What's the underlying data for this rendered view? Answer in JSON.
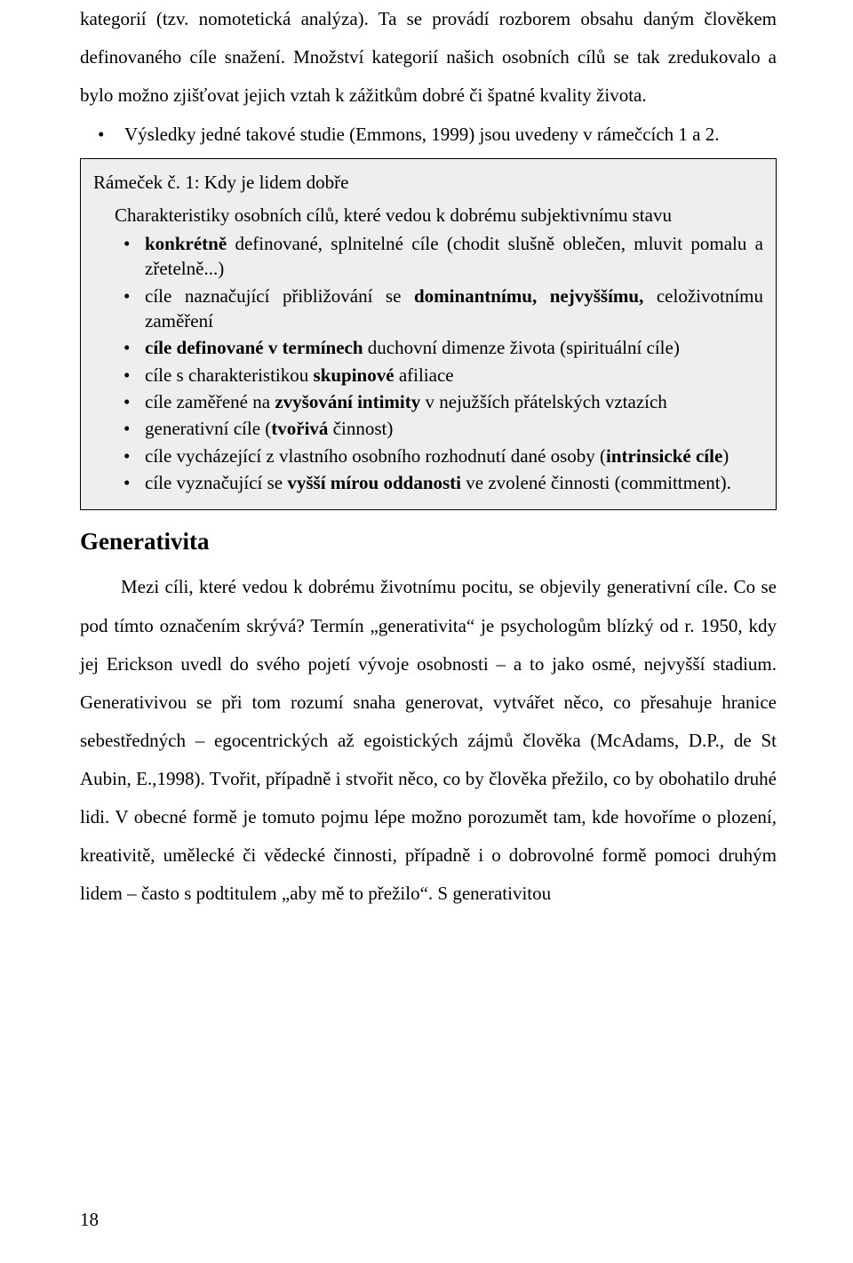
{
  "colors": {
    "page_bg": "#ffffff",
    "text": "#000000",
    "box_bg": "#eeeeee",
    "box_border": "#000000"
  },
  "typography": {
    "body_font": "Times New Roman",
    "body_size_pt": 16,
    "heading_size_pt": 20,
    "line_height_body": 2.05,
    "line_height_box": 1.35
  },
  "intro": {
    "text": "kategorií (tzv. nomotetická analýza). Ta se provádí rozborem obsahu daným člověkem definovaného cíle snažení. Množství kategorií našich osobních cílů se tak zredukovalo a bylo možno zjišťovat jejich vztah k zážitkům dobré či špatné kvality života."
  },
  "lead_bullet": {
    "text": "Výsledky jedné takové studie (Emmons, 1999) jsou uvedeny v rámečcích 1 a 2."
  },
  "box": {
    "title": "Rámeček č. 1: Kdy je lidem dobře",
    "lead": "Charakteristiky osobních cílů, které vedou k dobrému subjektivnímu stavu",
    "items": [
      {
        "pre": "",
        "bold": "konkrétně",
        "post": " definované, splnitelné cíle (chodit slušně oblečen, mluvit pomalu a zřetelně...)"
      },
      {
        "pre": "cíle naznačující přibližování se ",
        "bold": "dominantnímu, nejvyššímu,",
        "post": " celoživotnímu zaměření"
      },
      {
        "pre": "",
        "bold": "cíle definované v termínech",
        "post": " duchovní dimenze života (spirituální cíle)"
      },
      {
        "pre": "cíle s charakteristikou ",
        "bold": "skupinové",
        "post": " afiliace"
      },
      {
        "pre": "cíle zaměřené na ",
        "bold": "zvyšování intimity",
        "post": " v nejužších přátelských vztazích"
      },
      {
        "pre": "generativní cíle (",
        "bold": "tvořivá ",
        "post": "činnost)"
      },
      {
        "pre": "cíle vycházející z vlastního osobního rozhodnutí dané osoby (",
        "bold": "intrinsické cíle",
        "post": ")"
      },
      {
        "pre": "cíle vyznačující se ",
        "bold": "vyšší mírou oddanosti",
        "post": " ve zvolené činnosti (committment)."
      }
    ]
  },
  "section": {
    "heading": "Generativita",
    "body": "Mezi cíli, které vedou k dobrému životnímu pocitu, se objevily generativní cíle. Co se pod tímto označením skrývá? Termín „generativita“ je psychologům blízký od r. 1950, kdy jej Erickson uvedl do svého pojetí vývoje osobnosti – a to jako osmé, nejvyšší stadium. Generativivou se při tom rozumí snaha generovat, vytvářet něco, co přesahuje hranice sebestředných – egocentrických až egoistických zájmů člověka (McAdams, D.P., de St Aubin, E.,1998). Tvořit, případně i stvořit něco, co by člověka přežilo, co by obohatilo druhé lidi. V obecné formě je tomuto pojmu lépe možno porozumět tam, kde hovoříme o plození, kreativitě, umělecké či vědecké činnosti, případně i o dobrovolné formě pomoci druhým lidem – často s podtitulem „aby mě to přežilo“. S generativitou"
  },
  "page_number": "18"
}
